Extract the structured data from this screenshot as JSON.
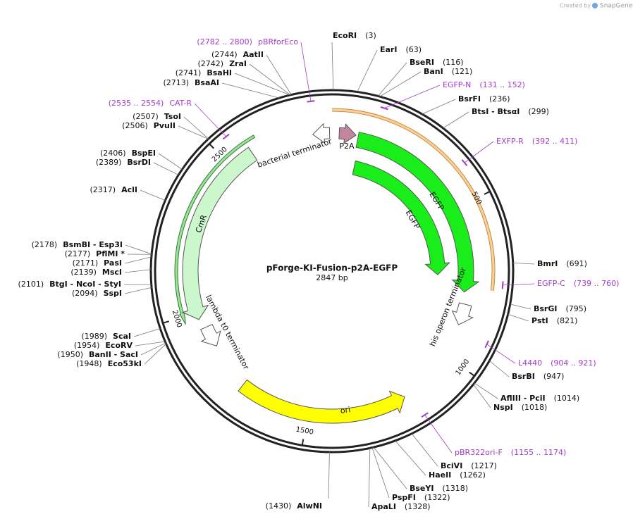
{
  "header": {
    "credit": "Created by",
    "brand": "SnapGene"
  },
  "plasmid": {
    "name": "pForge-KI-Fusion-p2A-EGFP",
    "length": "2847 bp"
  },
  "enzymes": [
    {
      "name": "EcoRI",
      "site": "(3)"
    },
    {
      "name": "EarI",
      "site": "(63)"
    },
    {
      "name": "BseRI",
      "site": "(116)"
    },
    {
      "name": "BanI",
      "site": "(121)"
    },
    {
      "name": "BsrFI",
      "site": "(236)"
    },
    {
      "name": "BtsI - BtsαI",
      "site": "(299)"
    },
    {
      "name": "BmrI",
      "site": "(691)"
    },
    {
      "name": "BsrGI",
      "site": "(795)"
    },
    {
      "name": "PstI",
      "site": "(821)"
    },
    {
      "name": "BsrBI",
      "site": "(947)"
    },
    {
      "name": "AflIII - PciI",
      "site": "(1014)"
    },
    {
      "name": "NspI",
      "site": "(1018)"
    },
    {
      "name": "BciVI",
      "site": "(1217)"
    },
    {
      "name": "HaeII",
      "site": "(1262)"
    },
    {
      "name": "BseYI",
      "site": "(1318)"
    },
    {
      "name": "PspFI",
      "site": "(1322)"
    },
    {
      "name": "ApaLI",
      "site": "(1328)"
    },
    {
      "name": "AlwNI",
      "site": "(1430)"
    },
    {
      "name": "Eco53kI",
      "site": "(1948)"
    },
    {
      "name": "BanII - SacI",
      "site": "(1950)"
    },
    {
      "name": "EcoRV",
      "site": "(1954)"
    },
    {
      "name": "ScaI",
      "site": "(1989)"
    },
    {
      "name": "SspI",
      "site": "(2094)"
    },
    {
      "name": "BtgI - NcoI - StyI",
      "site": "(2101)"
    },
    {
      "name": "MscI",
      "site": "(2139)"
    },
    {
      "name": "PasI",
      "site": "(2171)"
    },
    {
      "name": "PflMI *",
      "site": "(2177)"
    },
    {
      "name": "BsmBI - Esp3I",
      "site": "(2178)"
    },
    {
      "name": "AclI",
      "site": "(2317)"
    },
    {
      "name": "BsrDI",
      "site": "(2389)"
    },
    {
      "name": "BspEI",
      "site": "(2406)"
    },
    {
      "name": "PvuII",
      "site": "(2506)"
    },
    {
      "name": "TsoI",
      "site": "(2507)"
    },
    {
      "name": "BsaAI",
      "site": "(2713)"
    },
    {
      "name": "BsaHI",
      "site": "(2741)"
    },
    {
      "name": "ZraI",
      "site": "(2742)"
    },
    {
      "name": "AatII",
      "site": "(2744)"
    }
  ],
  "primers": [
    {
      "name": "pBRforEco",
      "range": "(2782 .. 2800)"
    },
    {
      "name": "CAT-R",
      "range": "(2535 .. 2554)"
    },
    {
      "name": "EGFP-N",
      "range": "(131 .. 152)"
    },
    {
      "name": "EXFP-R",
      "range": "(392 .. 411)"
    },
    {
      "name": "EGFP-C",
      "range": "(739 .. 760)"
    },
    {
      "name": "L4440",
      "range": "(904 .. 921)"
    },
    {
      "name": "pBR322ori-F",
      "range": "(1155 .. 1174)"
    }
  ],
  "features": [
    "bacterial terminator",
    "P2A",
    "EGFP",
    "EGFP",
    "his operon terminator",
    "ori",
    "lambda t0 terminator",
    "CmR"
  ],
  "ticks": [
    500,
    1000,
    1500,
    2000,
    2500
  ]
}
